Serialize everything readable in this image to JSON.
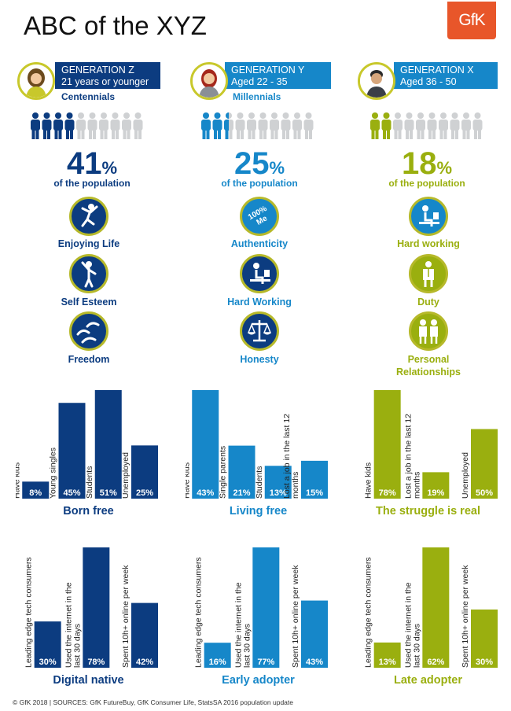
{
  "title": "ABC of the XYZ",
  "logo": "GfK",
  "colors": {
    "z": "#0c3c80",
    "y": "#1687c9",
    "x": "#9aaf0f",
    "grey": "#cfd1d3",
    "ring": "#c8c82b"
  },
  "generations": [
    {
      "key": "z",
      "color": "#0c3c80",
      "avatar": "woman-curly-hair-icon",
      "name": "GENERATION Z",
      "age": "21 years or younger",
      "nickname": "Centennials",
      "people_filled": 4,
      "people_total": 10,
      "pct": "41",
      "pct_sign": "%",
      "pop_label": "of the population",
      "values": [
        {
          "icon": "jumping-person-icon",
          "label": "Enjoying Life"
        },
        {
          "icon": "confident-person-icon",
          "label": "Self Esteem"
        },
        {
          "icon": "flying-birds-icon",
          "label": "Freedom"
        }
      ]
    },
    {
      "key": "y",
      "color": "#1687c9",
      "avatar": "woman-red-hair-icon",
      "name": "GENERATION Y",
      "age": "Aged 22 - 35",
      "nickname": "Millennials",
      "people_filled": 2.5,
      "people_total": 10,
      "pct": "25",
      "pct_sign": "%",
      "pop_label": "of the population",
      "values": [
        {
          "icon": "100-percent-me-icon",
          "icon_text": "100% Me",
          "label": "Authenticity"
        },
        {
          "icon": "person-at-desk-icon",
          "label": "Hard Working"
        },
        {
          "icon": "scales-icon",
          "label": "Honesty"
        }
      ]
    },
    {
      "key": "x",
      "color": "#9aaf0f",
      "avatar": "man-dark-hair-icon",
      "name": "GENERATION X",
      "age": "Aged 36 - 50",
      "nickname": null,
      "people_filled": 2,
      "people_total": 10,
      "pct": "18",
      "pct_sign": "%",
      "pop_label": "of the population",
      "values": [
        {
          "icon": "person-at-desk-icon",
          "label": "Hard working"
        },
        {
          "icon": "person-in-suit-icon",
          "label": "Duty"
        },
        {
          "icon": "two-people-icon",
          "label": "Personal Relationships"
        }
      ]
    }
  ],
  "chart_data": [
    {
      "type": "bar",
      "title": "Born free",
      "color": "#0c3c80",
      "categories": [
        "Have kids",
        "Young singles",
        "Students",
        "Unemployed"
      ],
      "values": [
        8,
        45,
        51,
        25
      ],
      "value_labels": [
        "8%",
        "45%",
        "51%",
        "25%"
      ],
      "ylim": [
        0,
        51
      ]
    },
    {
      "type": "bar",
      "title": "Living free",
      "color": "#1687c9",
      "categories": [
        "Have kids",
        "Single parents",
        "Students",
        "Lost a job in the last 12 months"
      ],
      "values": [
        43,
        21,
        13,
        15
      ],
      "value_labels": [
        "43%",
        "21%",
        "13%",
        "15%"
      ],
      "ylim": [
        0,
        43
      ]
    },
    {
      "type": "bar",
      "title": "The struggle is real",
      "color": "#9aaf0f",
      "categories": [
        "Have kids",
        "Lost a job in the last 12 months",
        "Unemployed"
      ],
      "values": [
        78,
        19,
        50
      ],
      "value_labels": [
        "78%",
        "19%",
        "50%"
      ],
      "ylim": [
        0,
        78
      ]
    },
    {
      "type": "bar",
      "title": "Digital native",
      "color": "#0c3c80",
      "categories": [
        "Leading edge tech consumers",
        "Used the internet in the last 30 days",
        "Spent 10h+ online per week"
      ],
      "values": [
        30,
        78,
        42
      ],
      "value_labels": [
        "30%",
        "78%",
        "42%"
      ],
      "ylim": [
        0,
        78
      ]
    },
    {
      "type": "bar",
      "title": "Early adopter",
      "color": "#1687c9",
      "categories": [
        "Leading edge tech consumers",
        "Used the internet in the last 30 days",
        "Spent 10h+ online per week"
      ],
      "values": [
        16,
        77,
        43
      ],
      "value_labels": [
        "16%",
        "77%",
        "43%"
      ],
      "ylim": [
        0,
        77
      ]
    },
    {
      "type": "bar",
      "title": "Late adopter",
      "color": "#9aaf0f",
      "categories": [
        "Leading edge tech consumers",
        "Used the internet in the last 30 days",
        "Spent 10h+ online per week"
      ],
      "values": [
        13,
        62,
        30
      ],
      "value_labels": [
        "13%",
        "62%",
        "30%"
      ],
      "ylim": [
        0,
        62
      ]
    }
  ],
  "footer": "© GfK 2018 | SOURCES: GfK FutureBuy, GfK Consumer Life, StatsSA 2016 population update"
}
